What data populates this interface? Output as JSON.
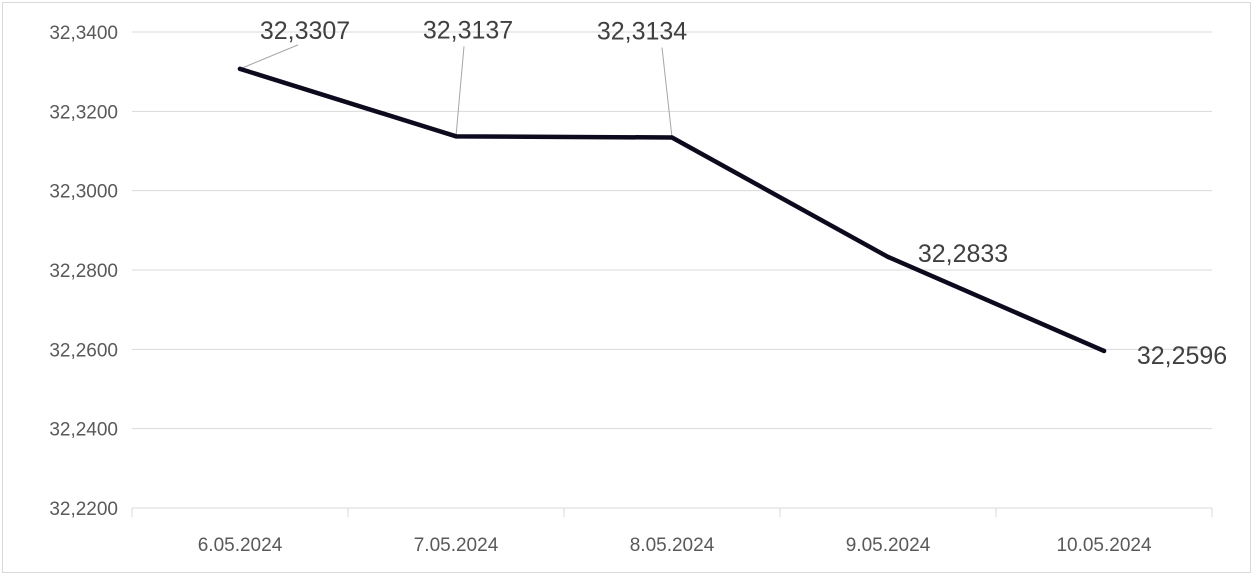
{
  "chart_data": {
    "type": "line",
    "title": "",
    "xlabel": "",
    "ylabel": "",
    "categories": [
      "6.05.2024",
      "7.05.2024",
      "8.05.2024",
      "9.05.2024",
      "10.05.2024"
    ],
    "series": [
      {
        "values": [
          32.3307,
          32.3137,
          32.3134,
          32.2833,
          32.2596
        ],
        "color": "#0d0a1e"
      }
    ],
    "data_labels": [
      "32,3307",
      "32,3137",
      "32,3134",
      "32,2833",
      "32,2596"
    ],
    "y_ticks": [
      32.22,
      32.24,
      32.26,
      32.28,
      32.3,
      32.32,
      32.34
    ],
    "y_tick_labels": [
      "32,2200",
      "32,2400",
      "32,2600",
      "32,2800",
      "32,3000",
      "32,3200",
      "32,3400"
    ],
    "ylim": [
      32.22,
      32.34
    ],
    "grid": true,
    "legend": "none",
    "colors": {
      "line": "#0d0a1e",
      "grid": "#d9d9d9",
      "leader": "#a6a6a6",
      "text": "#595959",
      "label": "#404040"
    }
  }
}
